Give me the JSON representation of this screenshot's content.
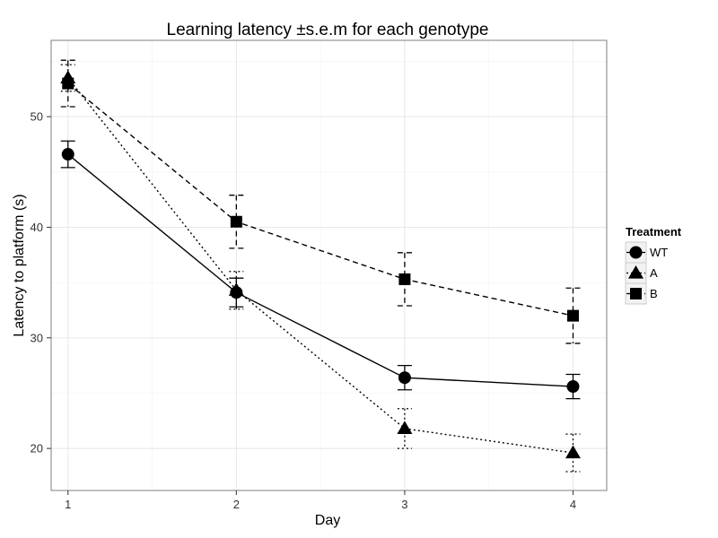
{
  "chart_data": {
    "type": "line",
    "title": "Learning latency ±s.e.m for each genotype",
    "xlabel": "Day",
    "ylabel": "Latency to platform (s)",
    "x": [
      1,
      2,
      3,
      4
    ],
    "xlim": [
      0.9,
      4.2
    ],
    "ylim": [
      16.2,
      56.9
    ],
    "xticks": [
      1,
      2,
      3,
      4
    ],
    "yticks": [
      20,
      30,
      40,
      50
    ],
    "grid": true,
    "legend": {
      "title": "Treatment",
      "position": "right"
    },
    "series": [
      {
        "name": "WT",
        "marker": "circle",
        "line": "solid",
        "values": [
          46.6,
          34.1,
          26.4,
          25.6
        ],
        "err": [
          1.2,
          1.3,
          1.1,
          1.1
        ]
      },
      {
        "name": "A",
        "marker": "triangle",
        "line": "dotted",
        "values": [
          53.5,
          34.3,
          21.8,
          19.6
        ],
        "err": [
          1.2,
          1.7,
          1.8,
          1.7
        ]
      },
      {
        "name": "B",
        "marker": "square",
        "line": "dashed",
        "values": [
          53.0,
          40.5,
          35.3,
          32.0
        ],
        "err": [
          2.1,
          2.4,
          2.4,
          2.5
        ]
      }
    ]
  }
}
